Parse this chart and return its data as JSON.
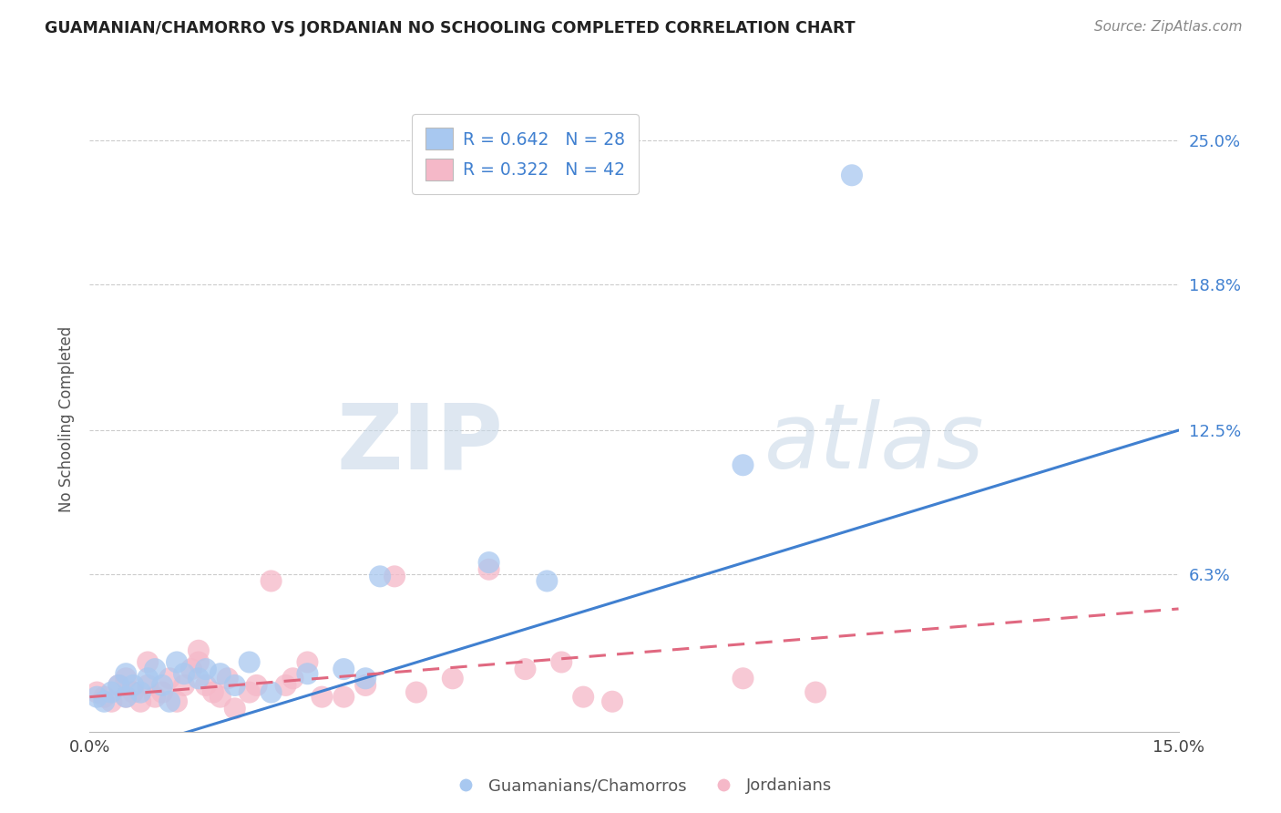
{
  "title": "GUAMANIAN/CHAMORRO VS JORDANIAN NO SCHOOLING COMPLETED CORRELATION CHART",
  "source": "Source: ZipAtlas.com",
  "ylabel": "No Schooling Completed",
  "xlim": [
    0.0,
    0.15
  ],
  "ylim": [
    -0.005,
    0.265
  ],
  "ytick_labels": [
    "6.3%",
    "12.5%",
    "18.8%",
    "25.0%"
  ],
  "ytick_vals": [
    0.063,
    0.125,
    0.188,
    0.25
  ],
  "blue_R": 0.642,
  "blue_N": 28,
  "pink_R": 0.322,
  "pink_N": 42,
  "blue_color": "#a8c8f0",
  "pink_color": "#f5b8c8",
  "blue_line_color": "#4080d0",
  "pink_line_color": "#e06880",
  "legend_label_blue": "Guamanians/Chamorros",
  "legend_label_pink": "Jordanians",
  "watermark_zip": "ZIP",
  "watermark_atlas": "atlas",
  "blue_scatter_x": [
    0.001,
    0.002,
    0.003,
    0.004,
    0.005,
    0.005,
    0.006,
    0.007,
    0.008,
    0.009,
    0.01,
    0.011,
    0.012,
    0.013,
    0.015,
    0.016,
    0.018,
    0.02,
    0.022,
    0.025,
    0.03,
    0.035,
    0.038,
    0.04,
    0.055,
    0.063,
    0.09,
    0.105
  ],
  "blue_scatter_y": [
    0.01,
    0.008,
    0.012,
    0.015,
    0.01,
    0.02,
    0.015,
    0.012,
    0.018,
    0.022,
    0.015,
    0.008,
    0.025,
    0.02,
    0.018,
    0.022,
    0.02,
    0.015,
    0.025,
    0.012,
    0.02,
    0.022,
    0.018,
    0.062,
    0.068,
    0.06,
    0.11,
    0.235
  ],
  "pink_scatter_x": [
    0.001,
    0.002,
    0.003,
    0.004,
    0.005,
    0.005,
    0.006,
    0.007,
    0.008,
    0.008,
    0.009,
    0.01,
    0.011,
    0.012,
    0.013,
    0.014,
    0.015,
    0.015,
    0.016,
    0.017,
    0.018,
    0.019,
    0.02,
    0.022,
    0.023,
    0.025,
    0.027,
    0.028,
    0.03,
    0.032,
    0.035,
    0.038,
    0.042,
    0.045,
    0.05,
    0.055,
    0.06,
    0.065,
    0.068,
    0.072,
    0.09,
    0.1
  ],
  "pink_scatter_y": [
    0.012,
    0.01,
    0.008,
    0.015,
    0.01,
    0.018,
    0.012,
    0.008,
    0.015,
    0.025,
    0.01,
    0.012,
    0.018,
    0.008,
    0.015,
    0.022,
    0.025,
    0.03,
    0.015,
    0.012,
    0.01,
    0.018,
    0.005,
    0.012,
    0.015,
    0.06,
    0.015,
    0.018,
    0.025,
    0.01,
    0.01,
    0.015,
    0.062,
    0.012,
    0.018,
    0.065,
    0.022,
    0.025,
    0.01,
    0.008,
    0.018,
    0.012
  ],
  "blue_line_x": [
    0.0,
    0.15
  ],
  "blue_line_y": [
    -0.018,
    0.125
  ],
  "pink_line_x": [
    0.0,
    0.15
  ],
  "pink_line_y": [
    0.01,
    0.048
  ]
}
